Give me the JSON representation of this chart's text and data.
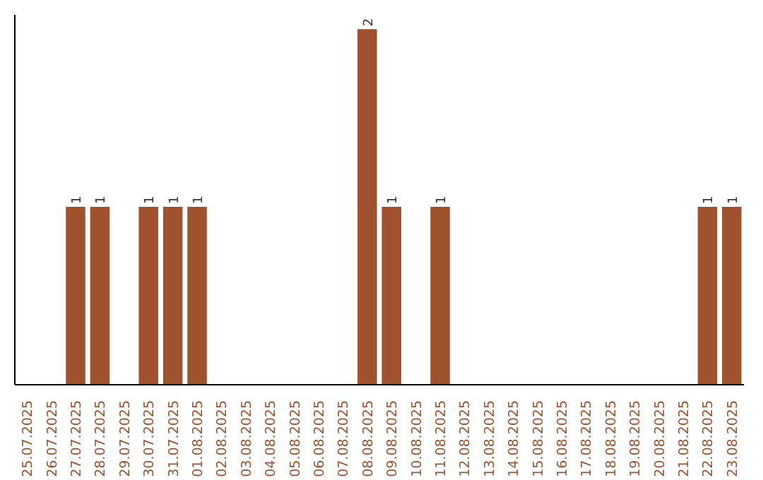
{
  "chart_data": {
    "type": "bar",
    "categories": [
      "25.07.2025",
      "26.07.2025",
      "27.07.2025",
      "28.07.2025",
      "29.07.2025",
      "30.07.2025",
      "31.07.2025",
      "01.08.2025",
      "02.08.2025",
      "03.08.2025",
      "04.08.2025",
      "05.08.2025",
      "06.08.2025",
      "07.08.2025",
      "08.08.2025",
      "09.08.2025",
      "10.08.2025",
      "11.08.2025",
      "12.08.2025",
      "13.08.2025",
      "14.08.2025",
      "15.08.2025",
      "16.08.2025",
      "17.08.2025",
      "18.08.2025",
      "19.08.2025",
      "20.08.2025",
      "21.08.2025",
      "22.08.2025",
      "23.08.2025"
    ],
    "values": [
      0,
      0,
      1,
      1,
      0,
      1,
      1,
      1,
      0,
      0,
      0,
      0,
      0,
      0,
      2,
      1,
      0,
      1,
      0,
      0,
      0,
      0,
      0,
      0,
      0,
      0,
      0,
      0,
      1,
      1
    ],
    "value_labels": [
      null,
      null,
      "1",
      "1",
      null,
      "1",
      "1",
      "1",
      null,
      null,
      null,
      null,
      null,
      null,
      "2",
      "1",
      null,
      "1",
      null,
      null,
      null,
      null,
      null,
      null,
      null,
      null,
      null,
      null,
      "1",
      "1"
    ],
    "color": "#a0522d",
    "tick_labels": "x",
    "grid": false
  }
}
